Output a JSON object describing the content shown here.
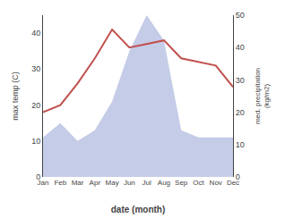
{
  "chart_data": {
    "type": "line",
    "categories": [
      "Jan",
      "Feb",
      "Mar",
      "Apr",
      "May",
      "Jun",
      "Jul",
      "Aug",
      "Sep",
      "Oct",
      "Nov",
      "Dec"
    ],
    "series": [
      {
        "type": "area",
        "color": "#c5cce8",
        "values": [
          11,
          15,
          10,
          13,
          21,
          35,
          45,
          38,
          13,
          11,
          11,
          11
        ]
      },
      {
        "type": "line",
        "color": "#c0504d",
        "values": [
          18,
          20,
          26,
          33,
          41,
          36,
          37,
          38,
          33,
          32,
          31,
          25
        ]
      }
    ],
    "xlabel": "date (month)",
    "ylabel": "max temp (C)",
    "y2label": "med. precipitation\n(kg/m2)",
    "ylim": [
      0,
      45
    ],
    "yticks": [
      0,
      10,
      20,
      30,
      40
    ],
    "y2lim": [
      0,
      50
    ],
    "y2ticks": [
      0,
      10,
      20,
      30,
      40,
      50
    ],
    "grid": false
  }
}
